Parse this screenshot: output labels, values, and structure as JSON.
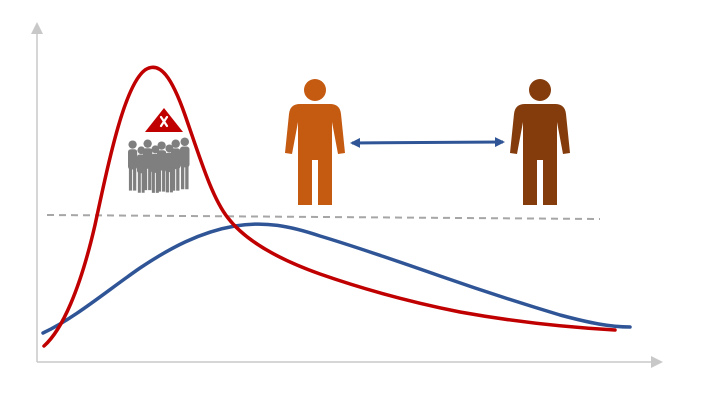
{
  "colors": {
    "background": "#ffffff",
    "axis": "#c8c8c8",
    "capacity_line": "#a6a6a6",
    "unmitigated_curve": "#c00000",
    "mitigated_curve": "#2f5597",
    "crowd": "#7f7f7f",
    "warning_triangle": "#c00000",
    "warning_mark": "#ffffff",
    "person_left": "#c55a11",
    "person_right": "#843c0c",
    "distance_arrow": "#2f5597"
  },
  "icons": {
    "warning": "warning-triangle-icon",
    "crowd": "crowd-icon",
    "person_left": "person-icon",
    "person_right": "person-icon",
    "distance": "double-arrow-icon"
  }
}
